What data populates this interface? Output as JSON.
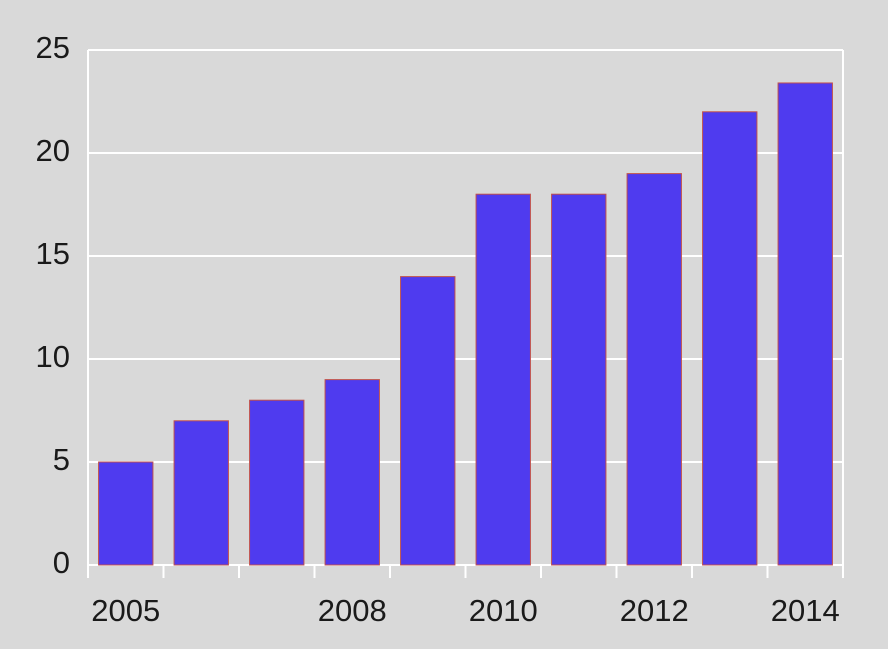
{
  "chart_data": {
    "type": "bar",
    "categories": [
      "2005",
      null,
      null,
      "2008",
      null,
      "2010",
      null,
      "2012",
      null,
      "2014"
    ],
    "values": [
      5,
      7,
      8,
      9,
      14,
      18,
      18,
      19,
      22,
      23.4
    ],
    "color": "#4f3bef",
    "ylim": [
      0,
      25
    ],
    "yticks": [
      0,
      5,
      10,
      15,
      20,
      25
    ],
    "grid": true
  }
}
